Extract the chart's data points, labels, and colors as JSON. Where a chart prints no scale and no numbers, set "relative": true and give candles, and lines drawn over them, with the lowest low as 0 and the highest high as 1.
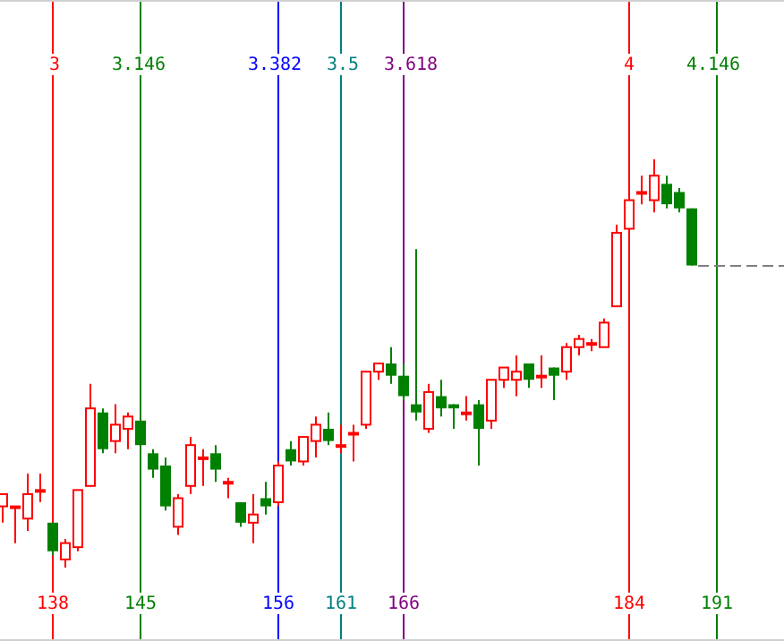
{
  "chart_data": {
    "type": "candlestick",
    "relative": true,
    "x": [
      134,
      135,
      136,
      137,
      138,
      139,
      140,
      141,
      142,
      143,
      144,
      145,
      146,
      147,
      148,
      149,
      150,
      151,
      152,
      153,
      154,
      155,
      156,
      157,
      158,
      159,
      160,
      161,
      162,
      163,
      164,
      165,
      166,
      167,
      168,
      169,
      170,
      171,
      172,
      173,
      174,
      175,
      176,
      177,
      178,
      179,
      180,
      181,
      182,
      183,
      184,
      185,
      186,
      187,
      188,
      189
    ],
    "ohlc": [
      [
        0.15,
        0.18,
        0.11,
        0.18
      ],
      [
        0.15,
        0.15,
        0.06,
        0.15
      ],
      [
        0.12,
        0.23,
        0.09,
        0.18
      ],
      [
        0.19,
        0.23,
        0.16,
        0.19
      ],
      [
        0.11,
        0.11,
        0.03,
        0.04
      ],
      [
        0.02,
        0.07,
        0,
        0.06
      ],
      [
        0.05,
        0.19,
        0.04,
        0.19
      ],
      [
        0.2,
        0.45,
        0.2,
        0.39
      ],
      [
        0.38,
        0.39,
        0.28,
        0.29
      ],
      [
        0.31,
        0.4,
        0.28,
        0.35
      ],
      [
        0.34,
        0.38,
        0.29,
        0.37
      ],
      [
        0.36,
        0.39,
        0.3,
        0.3
      ],
      [
        0.28,
        0.29,
        0.22,
        0.24
      ],
      [
        0.25,
        0.27,
        0.14,
        0.15
      ],
      [
        0.1,
        0.18,
        0.08,
        0.17
      ],
      [
        0.2,
        0.32,
        0.18,
        0.3
      ],
      [
        0.27,
        0.29,
        0.2,
        0.27
      ],
      [
        0.28,
        0.3,
        0.21,
        0.24
      ],
      [
        0.21,
        0.22,
        0.17,
        0.21
      ],
      [
        0.16,
        0.16,
        0.1,
        0.11
      ],
      [
        0.11,
        0.18,
        0.06,
        0.13
      ],
      [
        0.17,
        0.21,
        0.13,
        0.15
      ],
      [
        0.16,
        0.26,
        0.15,
        0.25
      ],
      [
        0.29,
        0.31,
        0.25,
        0.26
      ],
      [
        0.26,
        0.32,
        0.25,
        0.32
      ],
      [
        0.31,
        0.37,
        0.27,
        0.35
      ],
      [
        0.34,
        0.38,
        0.3,
        0.31
      ],
      [
        0.3,
        0.35,
        0.28,
        0.3
      ],
      [
        0.33,
        0.35,
        0.26,
        0.33
      ],
      [
        0.35,
        0.48,
        0.34,
        0.48
      ],
      [
        0.48,
        0.5,
        0.46,
        0.5
      ],
      [
        0.5,
        0.54,
        0.45,
        0.47
      ],
      [
        0.47,
        0.5,
        0.41,
        0.42
      ],
      [
        0.4,
        0.78,
        0.36,
        0.38
      ],
      [
        0.34,
        0.45,
        0.33,
        0.43
      ],
      [
        0.42,
        0.46,
        0.37,
        0.39
      ],
      [
        0.4,
        0.4,
        0.34,
        0.39
      ],
      [
        0.38,
        0.42,
        0.36,
        0.38
      ],
      [
        0.4,
        0.41,
        0.25,
        0.34
      ],
      [
        0.36,
        0.46,
        0.34,
        0.46
      ],
      [
        0.46,
        0.49,
        0.44,
        0.49
      ],
      [
        0.46,
        0.52,
        0.42,
        0.48
      ],
      [
        0.5,
        0.5,
        0.44,
        0.46
      ],
      [
        0.47,
        0.52,
        0.44,
        0.47
      ],
      [
        0.49,
        0.49,
        0.41,
        0.47
      ],
      [
        0.48,
        0.55,
        0.46,
        0.54
      ],
      [
        0.54,
        0.57,
        0.52,
        0.56
      ],
      [
        0.55,
        0.56,
        0.53,
        0.55
      ],
      [
        0.54,
        0.61,
        0.54,
        0.6
      ],
      [
        0.64,
        0.84,
        0.64,
        0.82
      ],
      [
        0.83,
        0.9,
        0.83,
        0.9
      ],
      [
        0.92,
        0.96,
        0.89,
        0.92
      ],
      [
        0.9,
        1,
        0.87,
        0.96
      ],
      [
        0.94,
        0.96,
        0.88,
        0.89
      ],
      [
        0.92,
        0.93,
        0.87,
        0.88
      ],
      [
        0.88,
        0.88,
        0.74,
        0.74
      ]
    ],
    "xlim": [
      134,
      196
    ],
    "xticks": [
      138,
      145,
      156,
      161,
      166,
      184,
      191
    ],
    "x2lim": [
      2.91,
      4.26
    ],
    "x2ticks": [
      3,
      3.146,
      3.382,
      3.5,
      3.618,
      4,
      4.146
    ],
    "tick_labels": "x",
    "ref_lines": [
      {
        "axis": "x",
        "value": 138,
        "color": "#ff0000"
      },
      {
        "axis": "x",
        "value": 145,
        "color": "#008000"
      },
      {
        "axis": "x",
        "value": 156,
        "color": "#0000ff"
      },
      {
        "axis": "x",
        "value": 161,
        "color": "#008080"
      },
      {
        "axis": "x",
        "value": 166,
        "color": "#800080"
      },
      {
        "axis": "x",
        "value": 184,
        "color": "#ff0000"
      },
      {
        "axis": "x",
        "value": 191,
        "color": "#008000"
      },
      {
        "axis": "y",
        "value": 0.74,
        "color": "#808080",
        "line_style": "dashed"
      }
    ]
  }
}
